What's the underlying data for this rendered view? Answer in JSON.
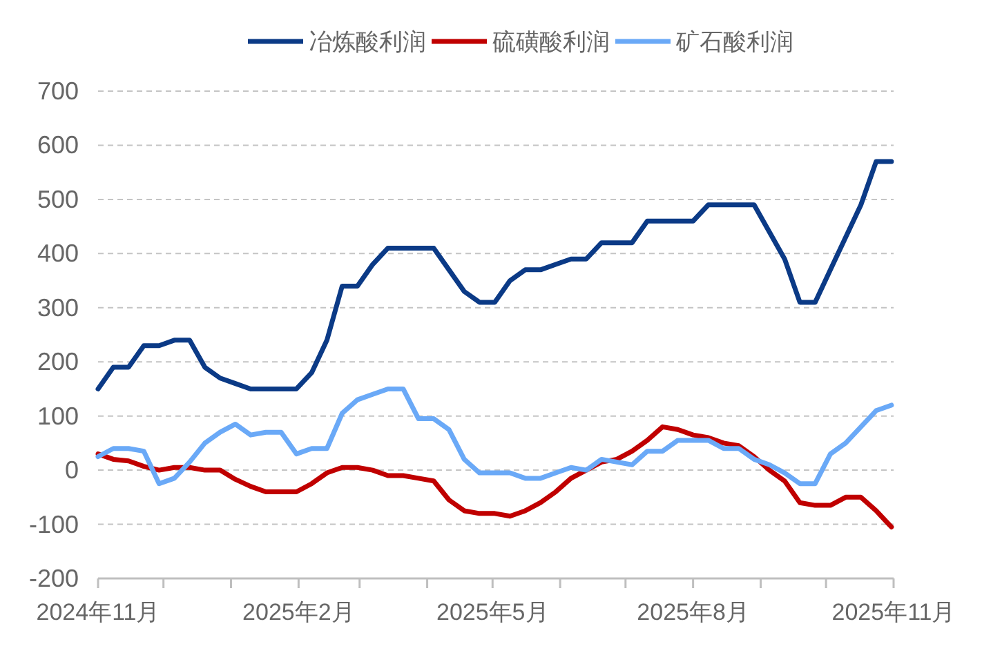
{
  "chart_data": {
    "type": "line",
    "x": [
      "2024-11-01",
      "2024-11-08",
      "2024-11-15",
      "2024-11-22",
      "2024-11-29",
      "2024-12-06",
      "2024-12-13",
      "2024-12-20",
      "2024-12-27",
      "2025-01-03",
      "2025-01-10",
      "2025-01-17",
      "2025-01-24",
      "2025-01-31",
      "2025-02-07",
      "2025-02-14",
      "2025-02-21",
      "2025-02-28",
      "2025-03-07",
      "2025-03-14",
      "2025-03-21",
      "2025-03-28",
      "2025-04-04",
      "2025-04-11",
      "2025-04-18",
      "2025-04-25",
      "2025-05-02",
      "2025-05-09",
      "2025-05-16",
      "2025-05-23",
      "2025-05-30",
      "2025-06-06",
      "2025-06-13",
      "2025-06-20",
      "2025-06-27",
      "2025-07-04",
      "2025-07-11",
      "2025-07-18",
      "2025-07-25",
      "2025-08-01",
      "2025-08-08",
      "2025-08-15",
      "2025-08-22",
      "2025-08-29",
      "2025-09-05",
      "2025-09-12",
      "2025-09-19",
      "2025-09-26",
      "2025-10-03",
      "2025-10-10",
      "2025-10-17",
      "2025-10-24",
      "2025-10-31"
    ],
    "series": [
      {
        "name": "冶炼酸利润",
        "color": "#0b3a86",
        "values": [
          150,
          190,
          190,
          230,
          230,
          240,
          240,
          190,
          170,
          160,
          150,
          150,
          150,
          150,
          180,
          240,
          340,
          340,
          380,
          410,
          410,
          410,
          410,
          370,
          330,
          310,
          310,
          350,
          370,
          370,
          380,
          390,
          390,
          420,
          420,
          420,
          460,
          460,
          460,
          460,
          490,
          490,
          490,
          490,
          440,
          390,
          310,
          310,
          370,
          430,
          490,
          570,
          570
        ]
      },
      {
        "name": "硫磺酸利润",
        "color": "#c00000",
        "values": [
          30,
          20,
          17,
          7,
          0,
          5,
          5,
          0,
          0,
          -17,
          -30,
          -40,
          -40,
          -40,
          -25,
          -5,
          5,
          5,
          0,
          -10,
          -10,
          -15,
          -20,
          -55,
          -75,
          -80,
          -80,
          -85,
          -75,
          -60,
          -40,
          -15,
          0,
          15,
          20,
          35,
          55,
          80,
          75,
          65,
          60,
          50,
          45,
          25,
          0,
          -20,
          -60,
          -65,
          -65,
          -50,
          -50,
          -75,
          -105
        ]
      },
      {
        "name": "矿石酸利润",
        "color": "#6aa9f7",
        "values": [
          25,
          40,
          40,
          35,
          -25,
          -15,
          15,
          50,
          70,
          85,
          65,
          70,
          70,
          30,
          40,
          40,
          105,
          130,
          140,
          150,
          150,
          95,
          95,
          75,
          20,
          -5,
          -5,
          -5,
          -15,
          -15,
          -5,
          5,
          0,
          20,
          15,
          10,
          35,
          35,
          55,
          55,
          55,
          40,
          40,
          20,
          10,
          -5,
          -25,
          -25,
          30,
          50,
          80,
          110,
          120
        ]
      }
    ],
    "xlim": [
      "2024-11-01",
      "2025-11-01"
    ],
    "xticks": [
      {
        "value": "2024-11-01",
        "label": "2024年11月"
      },
      {
        "value": "2024-12-01",
        "label": null
      },
      {
        "value": "2025-01-01",
        "label": null
      },
      {
        "value": "2025-02-01",
        "label": "2025年2月"
      },
      {
        "value": "2025-03-01",
        "label": null
      },
      {
        "value": "2025-04-01",
        "label": null
      },
      {
        "value": "2025-05-01",
        "label": "2025年5月"
      },
      {
        "value": "2025-06-01",
        "label": null
      },
      {
        "value": "2025-07-01",
        "label": null
      },
      {
        "value": "2025-08-01",
        "label": "2025年8月"
      },
      {
        "value": "2025-09-01",
        "label": null
      },
      {
        "value": "2025-10-01",
        "label": null
      },
      {
        "value": "2025-11-01",
        "label": "2025年11月"
      }
    ],
    "ylim": [
      -200,
      700
    ],
    "yticks": [
      -200,
      -100,
      0,
      100,
      200,
      300,
      400,
      500,
      600,
      700
    ],
    "grid": "y",
    "legend": "top",
    "marker": "none",
    "line_style": "solid"
  }
}
